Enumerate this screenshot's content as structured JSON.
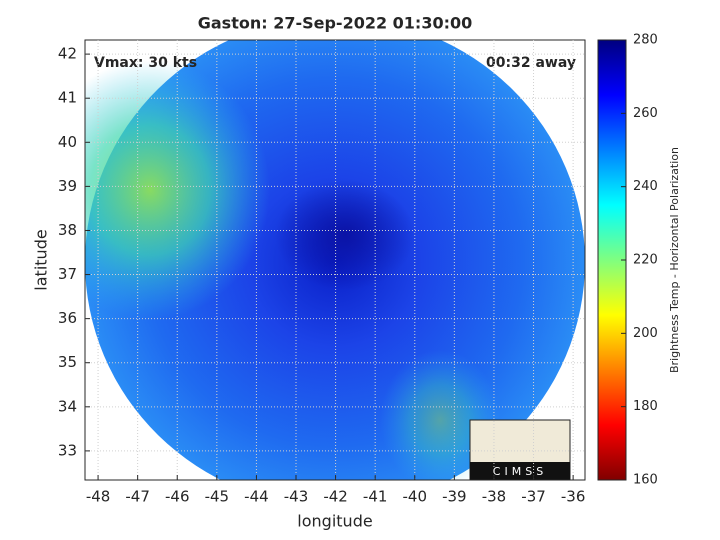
{
  "chart_data": {
    "type": "image",
    "title": "Gaston: 27-Sep-2022 01:30:00",
    "annotations": [
      "Vmax: 30 kts",
      "00:32 away"
    ],
    "x_label": "longitude",
    "y_label": "latitude",
    "xlim": [
      -48.33,
      -35.7
    ],
    "ylim": [
      32.34,
      42.32
    ],
    "xticks": [
      -48,
      -47,
      -46,
      -45,
      -44,
      -43,
      -42,
      -41,
      -40,
      -39,
      -38,
      -37,
      -36
    ],
    "yticks": [
      33,
      34,
      35,
      36,
      37,
      38,
      39,
      40,
      41,
      42
    ],
    "grid": true,
    "colorbar": {
      "label": "Brightness Temp - Horizontal Polarization",
      "lim": [
        160,
        280
      ],
      "ticks": [
        160,
        180,
        200,
        220,
        240,
        260,
        280
      ],
      "colormap": "jet"
    },
    "logo": "CIMSS"
  }
}
